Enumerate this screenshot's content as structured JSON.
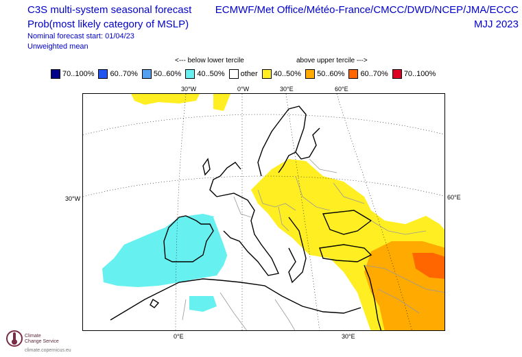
{
  "header": {
    "title_line1": "C3S multi-system seasonal forecast",
    "title_line2": "Prob(most likely category of MSLP)",
    "start_line": "Nominal forecast start: 01/04/23",
    "weighting": "Unweighted mean",
    "systems": "ECMWF/Met Office/Météo-France/CMCC/DWD/NCEP/JMA/ECCC",
    "season": "MJJ 2023"
  },
  "legend": {
    "below_label": "<--- below lower tercile",
    "above_label": "above upper tercile --->",
    "items": [
      {
        "label": "70..100%",
        "color": "#00008b"
      },
      {
        "label": "60..70%",
        "color": "#2255ee"
      },
      {
        "label": "50..60%",
        "color": "#55a0ee"
      },
      {
        "label": "40..50%",
        "color": "#66f0f0"
      },
      {
        "label": "other",
        "color": "#ffffff"
      },
      {
        "label": "40..50%",
        "color": "#ffee22"
      },
      {
        "label": "50..60%",
        "color": "#ffaa00"
      },
      {
        "label": "60..70%",
        "color": "#ff6600"
      },
      {
        "label": "70..100%",
        "color": "#dd0022"
      }
    ]
  },
  "axes": {
    "top_labels": [
      "30°W",
      "0°W",
      "30°E",
      "60°E"
    ],
    "left_label": "30°W",
    "right_label": "60°E",
    "bottom_labels": [
      "0°E",
      "30°E"
    ]
  },
  "logo": {
    "line1": "Climate",
    "line2": "Change Service",
    "url": "climate.copernicus.eu"
  },
  "colors": {
    "title": "#0000cc",
    "coast": "#000000",
    "border": "#999999"
  }
}
